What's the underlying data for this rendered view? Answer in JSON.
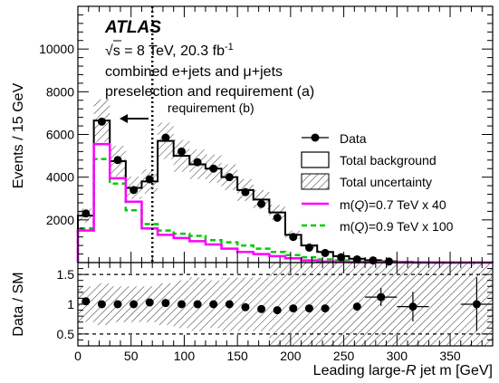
{
  "chart_data": [
    {
      "type": "histogram",
      "panel": "main",
      "xlim": [
        0,
        390
      ],
      "ylim": [
        0,
        12000
      ],
      "ylabel": "Events / 15 GeV",
      "y_ticks": [
        2000,
        4000,
        6000,
        8000,
        10000
      ],
      "bin_edges": [
        0,
        15,
        30,
        45,
        60,
        75,
        90,
        105,
        120,
        135,
        150,
        165,
        180,
        195,
        210,
        225,
        240,
        255,
        270,
        285,
        300,
        315,
        330,
        345,
        360,
        375,
        390
      ],
      "text": {
        "experiment": "ATLAS",
        "energy": "√s = 8 TeV, 20.3 fb",
        "energy_sup": "-1",
        "selection1": "combined e+jets and μ+jets",
        "selection2": "preselection and requirement (a)",
        "requirement": "requirement (b)"
      },
      "requirement_b_cut": 70,
      "legend": {
        "position": "right",
        "entries": [
          {
            "label": "Data"
          },
          {
            "label": "Total background"
          },
          {
            "label": "Total uncertainty"
          },
          {
            "label_pre": "m(",
            "label_ital": "Q",
            "label_post": ")=0.7 TeV x 40",
            "color": "#ff00ff"
          },
          {
            "label_pre": "m(",
            "label_ital": "Q",
            "label_post": ")=0.9 TeV x 100",
            "color": "#00cc00"
          }
        ]
      },
      "series": [
        {
          "name": "Data",
          "x": [
            7.5,
            22.5,
            37.5,
            52.5,
            67.5,
            82.5,
            97.5,
            112.5,
            127.5,
            142.5,
            157.5,
            172.5,
            187.5,
            202.5,
            217.5,
            232.5,
            247.5,
            262.5,
            277.5,
            292.5,
            307.5,
            322.5,
            337.5,
            352.5,
            367.5,
            382.5
          ],
          "values": [
            2300,
            6600,
            4800,
            3400,
            3900,
            5850,
            5200,
            4700,
            4400,
            4000,
            3300,
            2750,
            2100,
            1200,
            700,
            450,
            250,
            150,
            100,
            50,
            20,
            10,
            5,
            5,
            2,
            1
          ]
        },
        {
          "name": "Total background",
          "values": [
            2200,
            6650,
            4750,
            3500,
            3800,
            5700,
            5000,
            4600,
            4400,
            4000,
            3400,
            2950,
            2350,
            1300,
            800,
            500,
            300,
            180,
            110,
            60,
            30,
            15,
            10,
            5,
            3,
            2
          ],
          "unc_frac": 0.15
        },
        {
          "name": "m(Q)=0.7 TeV x 40",
          "color": "#ff00ff",
          "values": [
            1500,
            5550,
            3950,
            2850,
            1600,
            1300,
            1150,
            1000,
            850,
            650,
            500,
            400,
            300,
            200,
            100,
            50,
            30,
            20,
            10,
            10,
            5,
            5,
            0,
            0,
            0,
            0
          ]
        },
        {
          "name": "m(Q)=0.9 TeV x 100",
          "color": "#00cc00",
          "values": [
            1600,
            4850,
            3700,
            2450,
            1800,
            1500,
            1350,
            1250,
            1050,
            950,
            800,
            650,
            500,
            350,
            250,
            150,
            100,
            50,
            30,
            20,
            10,
            5,
            0,
            0,
            0,
            0
          ]
        }
      ]
    },
    {
      "type": "ratio",
      "panel": "ratio",
      "xlim": [
        0,
        390
      ],
      "ylim": [
        0.3,
        1.7
      ],
      "xlabel_pre": "Leading large-",
      "xlabel_ital": "R",
      "xlabel_post": " jet m [GeV]",
      "ylabel": "Data / SM",
      "x_ticks": [
        0,
        50,
        100,
        150,
        200,
        250,
        300,
        350
      ],
      "y_ticks": [
        0.5,
        1,
        1.5
      ],
      "dashed_lines": [
        0.5,
        1.5
      ],
      "unc_band": [
        0.3,
        0.35,
        0.3,
        0.3,
        0.3,
        0.35,
        0.4,
        0.45,
        0.4,
        0.45,
        0.45,
        0.45,
        0.7,
        0.7,
        0.7,
        0.7,
        0.7,
        0.7,
        0.7,
        0.7,
        0.7,
        0.7,
        0.7,
        0.7,
        0.7,
        0.7
      ],
      "points": [
        {
          "x": 7.5,
          "y": 1.05
        },
        {
          "x": 22.5,
          "y": 1.0
        },
        {
          "x": 37.5,
          "y": 1.0
        },
        {
          "x": 52.5,
          "y": 1.0
        },
        {
          "x": 67.5,
          "y": 1.03
        },
        {
          "x": 82.5,
          "y": 1.02
        },
        {
          "x": 97.5,
          "y": 1.0
        },
        {
          "x": 112.5,
          "y": 1.0
        },
        {
          "x": 127.5,
          "y": 1.0
        },
        {
          "x": 142.5,
          "y": 1.0
        },
        {
          "x": 157.5,
          "y": 0.95
        },
        {
          "x": 172.5,
          "y": 0.92
        },
        {
          "x": 187.5,
          "y": 0.9
        },
        {
          "x": 202.5,
          "y": 0.93
        },
        {
          "x": 217.5,
          "y": 0.93
        },
        {
          "x": 232.5,
          "y": 0.93
        },
        {
          "x": 262.5,
          "y": 0.96
        },
        {
          "x": 285,
          "y": 1.12,
          "err": 0.15,
          "xerr": 15
        },
        {
          "x": 315,
          "y": 0.96,
          "err": 0.25,
          "xerr": 15
        },
        {
          "x": 375,
          "y": 1.0,
          "err": 0.45,
          "xerr": 15
        }
      ]
    }
  ]
}
